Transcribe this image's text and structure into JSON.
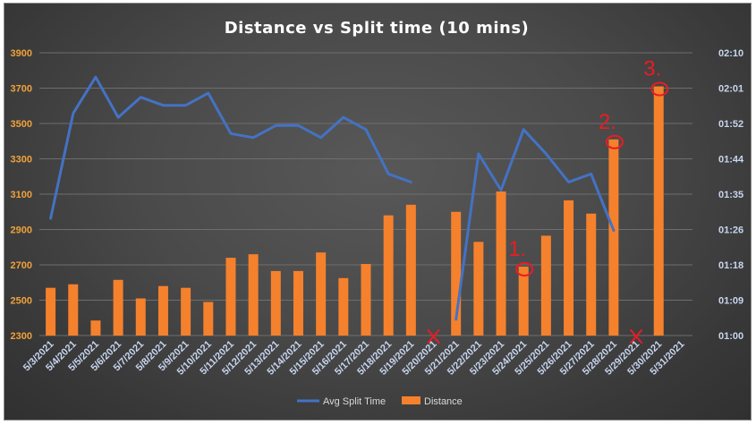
{
  "chart_data": {
    "type": "bar",
    "title": "Distance vs Split time (10 mins)",
    "categories": [
      "5/3/2021",
      "5/4/2021",
      "5/5/2021",
      "5/6/2021",
      "5/7/2021",
      "5/8/2021",
      "5/9/2021",
      "5/10/2021",
      "5/11/2021",
      "5/12/2021",
      "5/13/2021",
      "5/14/2021",
      "5/15/2021",
      "5/16/2021",
      "5/17/2021",
      "5/18/2021",
      "5/19/2021",
      "5/20/2021",
      "5/21/2021",
      "5/22/2021",
      "5/23/2021",
      "5/24/2021",
      "5/25/2021",
      "5/26/2021",
      "5/27/2021",
      "5/28/2021",
      "5/29/2021",
      "5/30/2021",
      "5/31/2021"
    ],
    "series": [
      {
        "name": "Distance",
        "type": "bar",
        "axis": "left",
        "color": "#f5812d",
        "values": [
          2570,
          2590,
          2385,
          2615,
          2510,
          2580,
          2570,
          2490,
          2740,
          2760,
          2665,
          2665,
          2770,
          2625,
          2705,
          2980,
          3040,
          null,
          3000,
          2830,
          3115,
          2690,
          2865,
          3065,
          2990,
          3410,
          null,
          3710,
          null
        ]
      },
      {
        "name": "Avg Split Time",
        "type": "line",
        "axis": "right",
        "color": "#4472c4",
        "values": [
          "1:29",
          "1:55",
          "2:04",
          "1:54",
          "1:59",
          "1:57",
          "1:57",
          "2:00",
          "1:50",
          "1:49",
          "1:52",
          "1:52",
          "1:49",
          "1:54",
          "1:51",
          "1:40",
          "1:38",
          null,
          "1:04",
          "1:45",
          "1:36",
          "1:51",
          "1:45",
          "1:38",
          "1:40",
          "1:26",
          null,
          null,
          null
        ]
      }
    ],
    "y_left": {
      "min": 2300,
      "max": 3900,
      "ticks": [
        "3900",
        "3700",
        "3500",
        "3300",
        "3100",
        "2900",
        "2700",
        "2500",
        "2300"
      ]
    },
    "y_right": {
      "min": "1:00",
      "max": "2:10",
      "ticks": [
        "02:10",
        "02:01",
        "01:52",
        "01:44",
        "01:35",
        "01:26",
        "01:18",
        "01:09",
        "01:00"
      ]
    },
    "legend": {
      "position": "bottom",
      "entries": [
        "Avg Split Time",
        "Distance"
      ]
    },
    "grid": true,
    "annotations": [
      {
        "type": "cross",
        "category": "5/20/2021",
        "color": "#ea1c24"
      },
      {
        "type": "cross",
        "category": "5/29/2021",
        "color": "#ea1c24"
      },
      {
        "type": "label",
        "text": "1.",
        "category": "5/24/2021",
        "color": "#ea1c24"
      },
      {
        "type": "label",
        "text": "2.",
        "category": "5/28/2021",
        "color": "#ea1c24"
      },
      {
        "type": "label",
        "text": "3.",
        "category": "5/30/2021",
        "color": "#ea1c24"
      }
    ]
  }
}
